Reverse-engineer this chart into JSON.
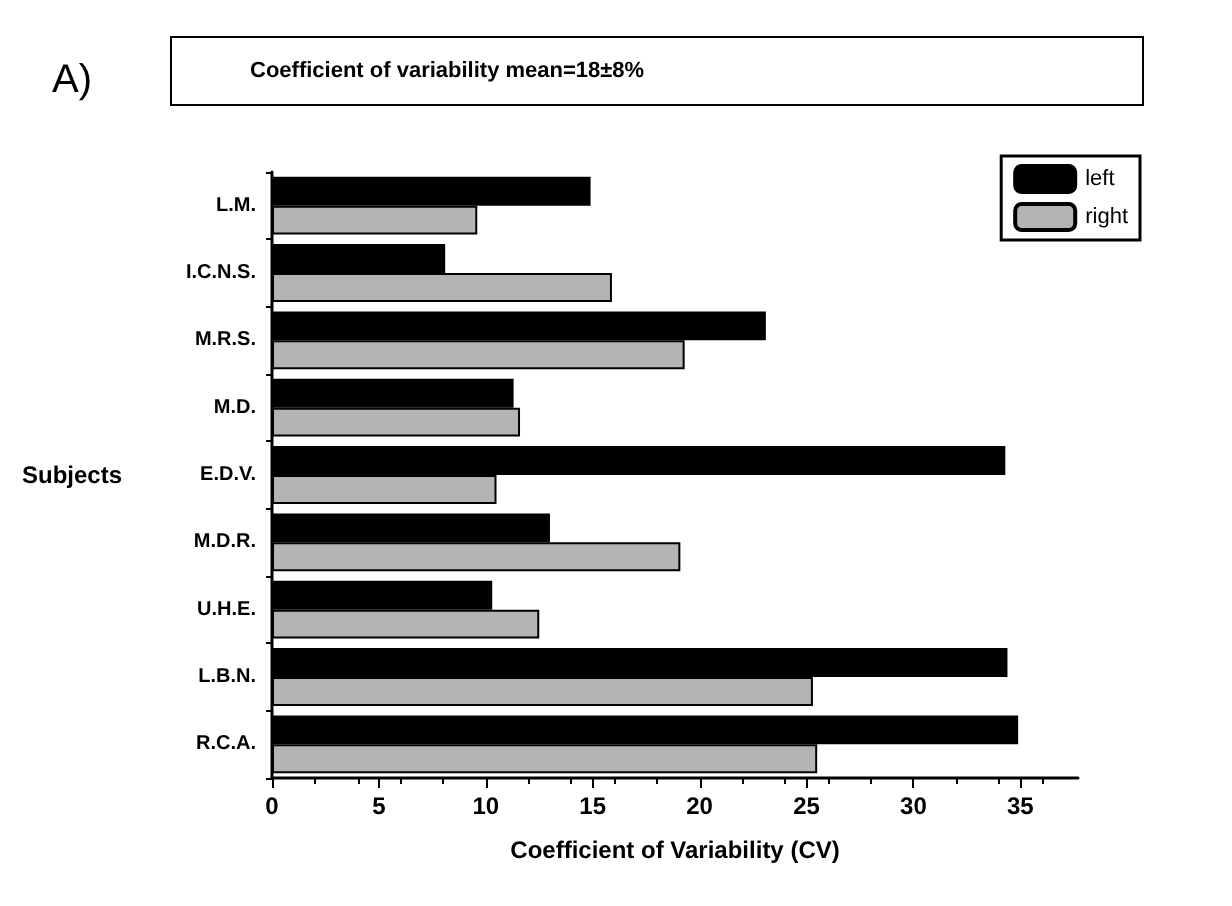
{
  "chart_data": {
    "type": "bar",
    "orientation": "horizontal",
    "title": "Coefficient of variability mean=18±8%",
    "annotations": [
      "A)"
    ],
    "xlabel": "Coefficient of Variability (CV)",
    "ylabel": "Subjects",
    "categories": [
      "L.M.",
      "I.C.N.S.",
      "M.R.S.",
      "M.D.",
      "E.D.V.",
      "M.D.R.",
      "U.H.E.",
      "L.B.N.",
      "R.C.A."
    ],
    "series": [
      {
        "name": "left",
        "color": "#000000",
        "values": [
          14.9,
          8.1,
          23.1,
          11.3,
          34.3,
          13.0,
          10.3,
          34.4,
          34.9
        ]
      },
      {
        "name": "right",
        "color": "#b4b4b4",
        "values": [
          9.6,
          15.9,
          19.3,
          11.6,
          10.5,
          19.1,
          12.5,
          25.3,
          25.5
        ]
      }
    ],
    "xlim": [
      0,
      37.7
    ],
    "xticks": [
      0,
      5,
      10,
      15,
      20,
      25,
      30,
      35
    ],
    "grid": false,
    "legend": "top right"
  }
}
